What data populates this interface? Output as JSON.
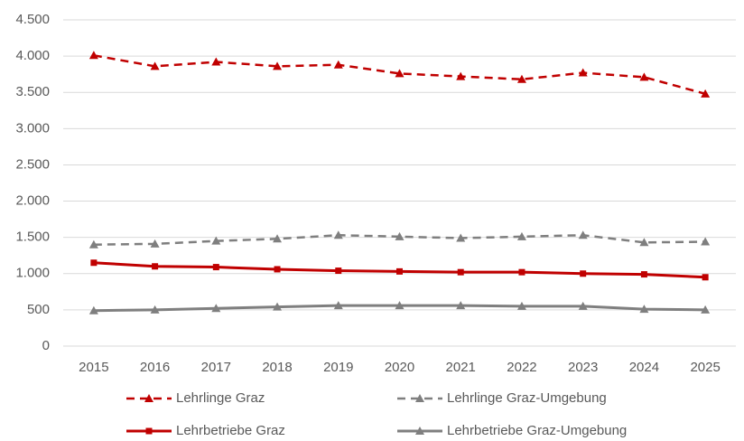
{
  "chart_data": {
    "type": "line",
    "categories": [
      "2015",
      "2016",
      "2017",
      "2018",
      "2019",
      "2020",
      "2021",
      "2022",
      "2023",
      "2024",
      "2025"
    ],
    "series": [
      {
        "name": "Lehrlinge Graz",
        "color": "#c00000",
        "dash": true,
        "marker": "triangle",
        "values": [
          4010,
          3860,
          3920,
          3860,
          3880,
          3760,
          3720,
          3680,
          3770,
          3710,
          3480
        ]
      },
      {
        "name": "Lehrlinge Graz-Umgebung",
        "color": "#7f7f7f",
        "dash": true,
        "marker": "triangle",
        "values": [
          1400,
          1410,
          1450,
          1480,
          1530,
          1510,
          1490,
          1510,
          1530,
          1430,
          1440
        ]
      },
      {
        "name": "Lehrbetriebe Graz",
        "color": "#c00000",
        "dash": false,
        "marker": "square",
        "values": [
          1150,
          1100,
          1090,
          1060,
          1040,
          1030,
          1020,
          1020,
          1000,
          990,
          950
        ]
      },
      {
        "name": "Lehrbetriebe Graz-Umgebung",
        "color": "#7f7f7f",
        "dash": false,
        "marker": "triangle",
        "values": [
          490,
          500,
          520,
          540,
          560,
          560,
          560,
          550,
          550,
          510,
          500
        ]
      }
    ],
    "ylim": [
      0,
      4500
    ],
    "yticks": [
      0,
      500,
      {
        "value": 1000,
        "label": "1.000"
      },
      {
        "value": 1500,
        "label": "1.500"
      },
      {
        "value": 2000,
        "label": "2.000"
      },
      {
        "value": 2500,
        "label": "2.500"
      },
      {
        "value": 3000,
        "label": "3.000"
      },
      {
        "value": 3500,
        "label": "3.500"
      },
      {
        "value": 4000,
        "label": "4.000"
      },
      {
        "value": 4500,
        "label": "4.500"
      }
    ],
    "grid": true,
    "legend": "bottom"
  }
}
